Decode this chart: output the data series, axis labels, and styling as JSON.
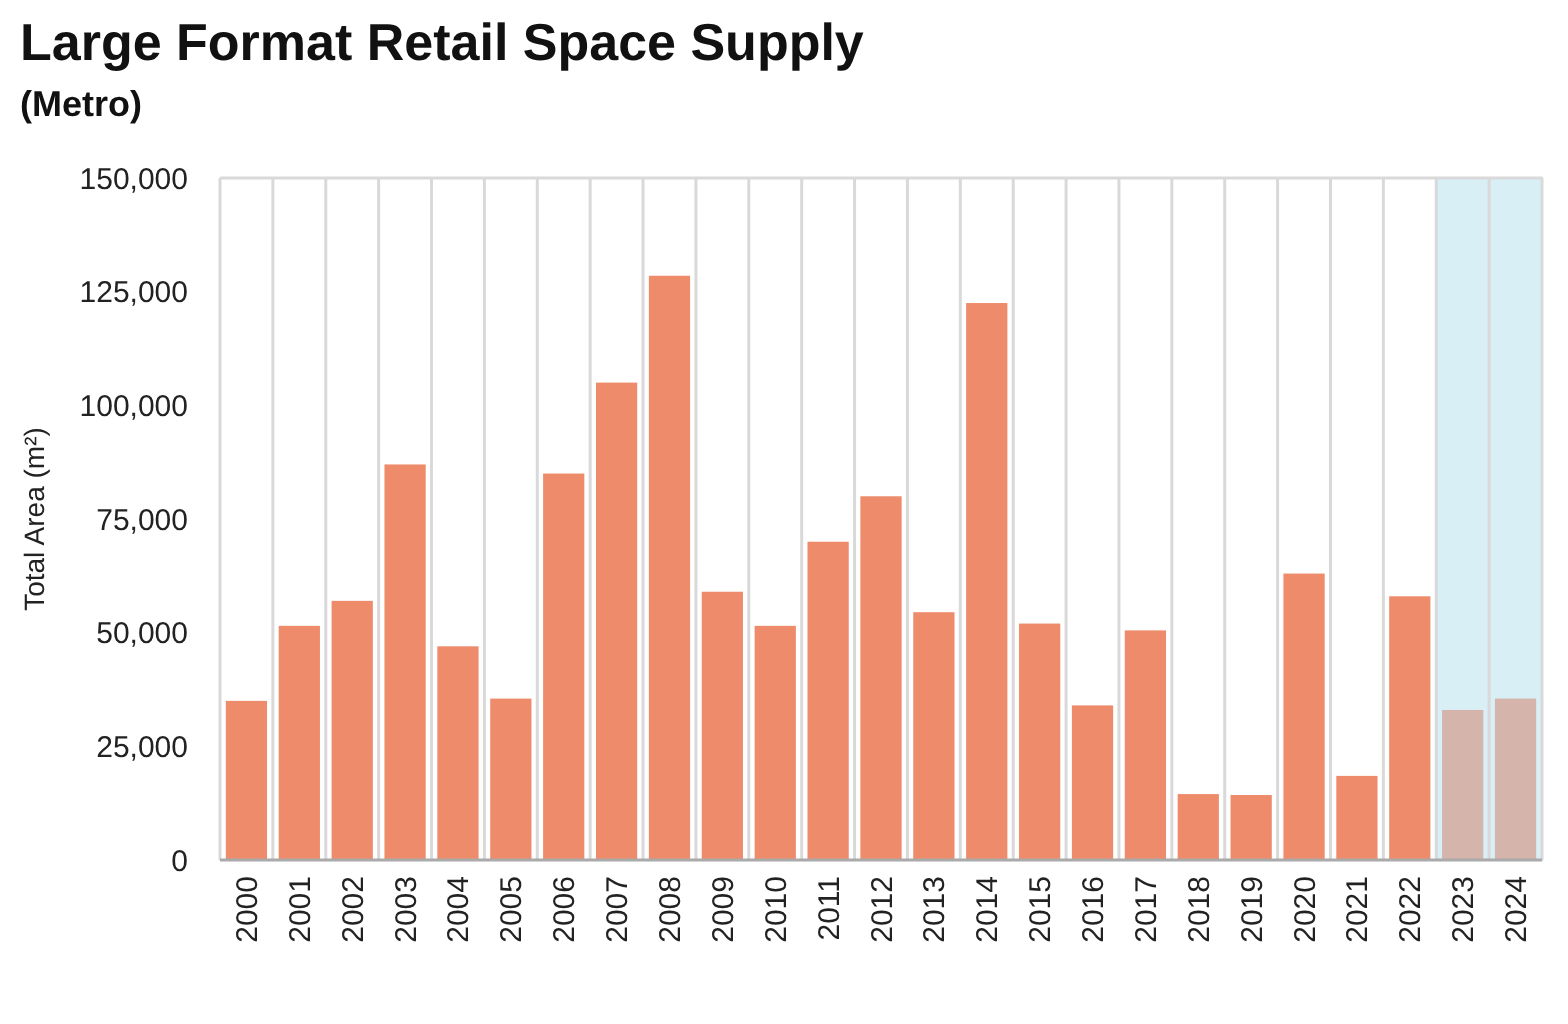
{
  "chart_data": {
    "type": "bar",
    "title": "Large Format Retail Space Supply",
    "subtitle": "(Metro)",
    "ylabel": "Total Area (m²)",
    "categories": [
      "2000",
      "2001",
      "2002",
      "2003",
      "2004",
      "2005",
      "2006",
      "2007",
      "2008",
      "2009",
      "2010",
      "2011",
      "2012",
      "2013",
      "2014",
      "2015",
      "2016",
      "2017",
      "2018",
      "2019",
      "2020",
      "2021",
      "2022",
      "2023",
      "2024"
    ],
    "values": [
      35000,
      51500,
      57000,
      87000,
      47000,
      35500,
      85000,
      105000,
      128500,
      59000,
      51500,
      70000,
      80000,
      54500,
      122500,
      52000,
      34000,
      50500,
      14500,
      14300,
      63000,
      18500,
      58000,
      33000,
      35500
    ],
    "colors": [
      "#ee8b6a",
      "#ee8b6a",
      "#ee8b6a",
      "#ee8b6a",
      "#ee8b6a",
      "#ee8b6a",
      "#ee8b6a",
      "#ee8b6a",
      "#ee8b6a",
      "#ee8b6a",
      "#ee8b6a",
      "#ee8b6a",
      "#ee8b6a",
      "#ee8b6a",
      "#ee8b6a",
      "#ee8b6a",
      "#ee8b6a",
      "#ee8b6a",
      "#ee8b6a",
      "#ee8b6a",
      "#ee8b6a",
      "#ee8b6a",
      "#ee8b6a",
      "#d4b4ab",
      "#d4b4ab"
    ],
    "ylim": [
      0,
      150000
    ],
    "yticks": [
      {
        "value": 0,
        "label": "0"
      },
      {
        "value": 25000,
        "label": "25,000"
      },
      {
        "value": 50000,
        "label": "50,000"
      },
      {
        "value": 75000,
        "label": "75,000"
      },
      {
        "value": 100000,
        "label": "100,000"
      },
      {
        "value": 125000,
        "label": "125,000"
      },
      {
        "value": 150000,
        "label": "150,000"
      }
    ],
    "bands": [
      {
        "axis": "x",
        "from": "2023",
        "to": "2024",
        "color": "#d9eff6"
      }
    ],
    "grid": "x"
  }
}
